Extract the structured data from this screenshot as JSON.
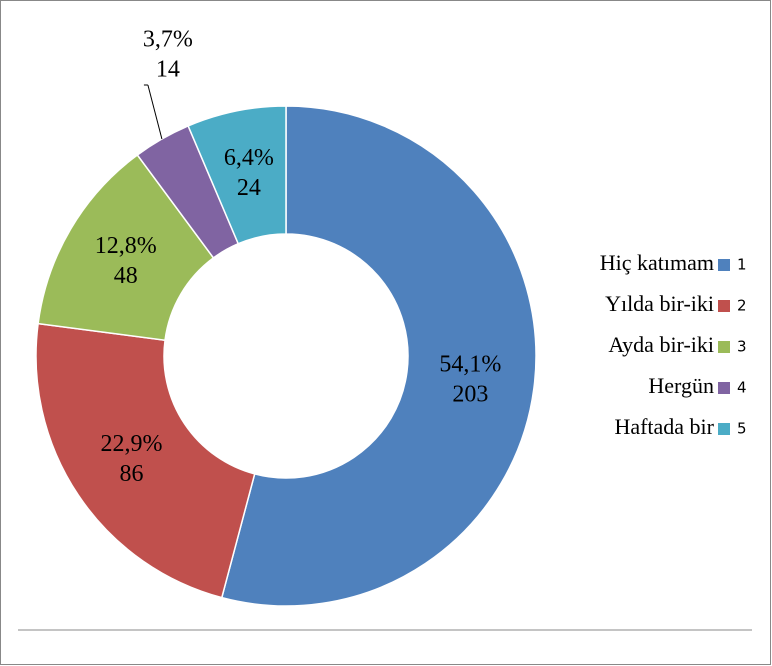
{
  "chart_data": {
    "type": "donut",
    "categories": [
      "Hiç katımam",
      "Yılda bir-iki",
      "Ayda bir-iki",
      "Hergün",
      "Haftada bir"
    ],
    "legend_labels": [
      "1",
      "2",
      "3",
      "4",
      "5"
    ],
    "values": [
      203,
      86,
      48,
      14,
      24
    ],
    "percents": [
      54.1,
      22.9,
      12.8,
      3.7,
      6.4
    ],
    "percent_labels": [
      "54,1%",
      "22,9%",
      "12,8%",
      "3,7%",
      "6,4%"
    ],
    "colors": [
      "#4f81bd",
      "#c0504d",
      "#9bbb59",
      "#8064a2",
      "#4bacc6"
    ],
    "legend": "right"
  }
}
